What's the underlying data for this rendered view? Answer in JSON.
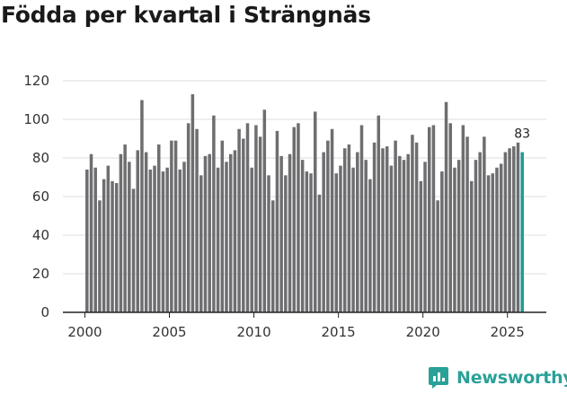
{
  "title": "Födda per kvartal i Strängnäs",
  "brand": {
    "name": "Newsworthy",
    "color": "#2aa198"
  },
  "colors": {
    "bar": "#6e6d70",
    "highlight": "#1f9a93",
    "grid": "#dddddd",
    "axis": "#222222"
  },
  "chart_data": {
    "type": "bar",
    "title": "Födda per kvartal i Strängnäs",
    "xlabel": "",
    "ylabel": "",
    "ylim": [
      0,
      120
    ],
    "yticks": [
      0,
      20,
      40,
      60,
      80,
      100,
      120
    ],
    "xlim": [
      1998.7,
      2027.3
    ],
    "xticks": [
      2000,
      2005,
      2010,
      2015,
      2020,
      2025
    ],
    "grid": true,
    "last_label": "83",
    "start_year": 2000,
    "series": [
      {
        "name": "Födda",
        "values": [
          74,
          82,
          75,
          58,
          69,
          76,
          68,
          67,
          82,
          87,
          78,
          64,
          84,
          110,
          83,
          74,
          76,
          87,
          73,
          75,
          89,
          89,
          74,
          78,
          98,
          113,
          95,
          71,
          81,
          82,
          102,
          75,
          89,
          78,
          82,
          84,
          95,
          90,
          98,
          75,
          97,
          91,
          105,
          71,
          58,
          94,
          81,
          71,
          82,
          96,
          98,
          79,
          73,
          72,
          104,
          61,
          83,
          89,
          95,
          72,
          76,
          85,
          87,
          75,
          83,
          97,
          79,
          69,
          88,
          102,
          85,
          86,
          76,
          89,
          81,
          79,
          82,
          92,
          88,
          68,
          78,
          96,
          97,
          58,
          73,
          109,
          98,
          75,
          79,
          97,
          91,
          68,
          79,
          83,
          91,
          71,
          72,
          75,
          77,
          83,
          85,
          86,
          88,
          83
        ]
      }
    ]
  }
}
